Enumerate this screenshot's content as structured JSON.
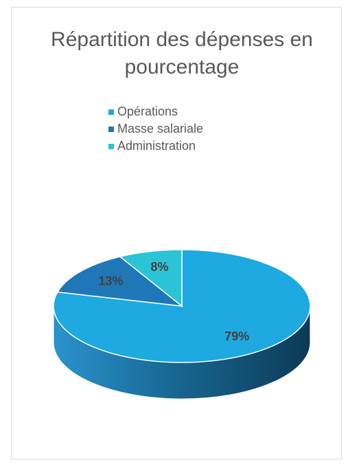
{
  "chart_data": {
    "type": "pie",
    "title": "Répartition des dépenses en pourcentage",
    "categories": [
      "Opérations",
      "Masse salariale",
      "Administration"
    ],
    "values": [
      79,
      13,
      8
    ],
    "value_labels": [
      "79%",
      "13%",
      "8%"
    ],
    "colors": [
      "#1ea9e1",
      "#1f77b8",
      "#2bc4d6"
    ],
    "legend": "top"
  }
}
